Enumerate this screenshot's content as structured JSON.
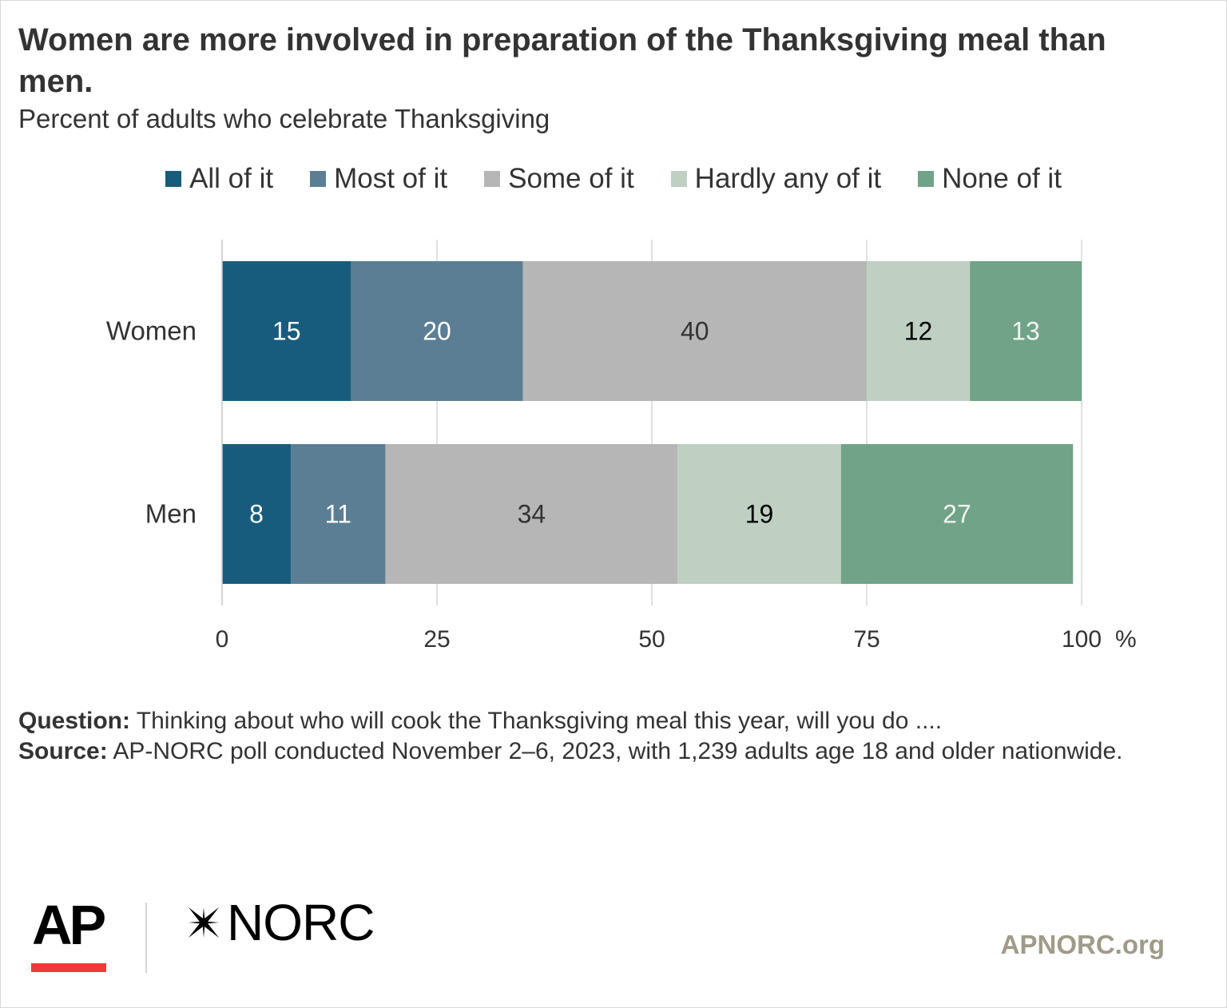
{
  "title": "Women are more involved in preparation of the Thanksgiving meal than men.",
  "subtitle": "Percent of adults who celebrate Thanksgiving",
  "chart_data": {
    "type": "bar",
    "orientation": "horizontal",
    "stacked": true,
    "categories": [
      "Women",
      "Men"
    ],
    "series": [
      {
        "name": "All of it",
        "values": [
          15,
          8
        ],
        "color": "#185c7d",
        "label_color": "#ffffff"
      },
      {
        "name": "Most of it",
        "values": [
          20,
          11
        ],
        "color": "#5b7e94",
        "label_color": "#ffffff"
      },
      {
        "name": "Some of it",
        "values": [
          40,
          34
        ],
        "color": "#b6b6b6",
        "label_color": "#333333"
      },
      {
        "name": "Hardly any of it",
        "values": [
          12,
          19
        ],
        "color": "#bfd0c3",
        "label_color": "#000000"
      },
      {
        "name": "None of it",
        "values": [
          13,
          27
        ],
        "color": "#70a387",
        "label_color": "#f3f3f3"
      }
    ],
    "x_ticks": [
      "0",
      "25",
      "50",
      "75",
      "100"
    ],
    "x_unit": "%",
    "xlim": [
      0,
      100
    ],
    "grid": true,
    "legend_position": "top"
  },
  "notes": {
    "question_label": "Question:",
    "question_text": " Thinking about who will cook the Thanksgiving meal this year, will you do ....",
    "source_label": "Source:",
    "source_text": " AP-NORC poll conducted November 2–6, 2023, with 1,239  adults age 18 and older nationwide."
  },
  "footer": {
    "ap_logo": "AP",
    "norc_logo": "NORC",
    "site": "APNORC.org",
    "accent": "#ef3a3a"
  }
}
